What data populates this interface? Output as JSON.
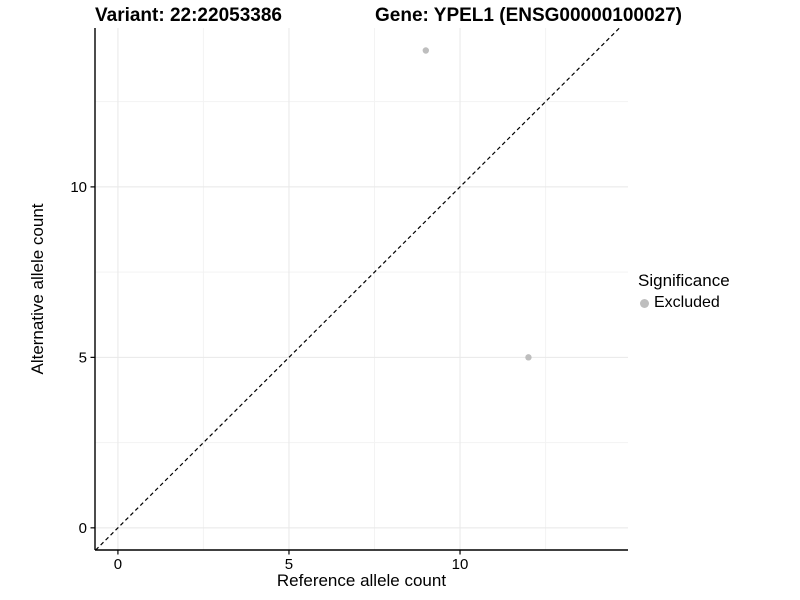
{
  "titles": {
    "variant": "Variant: 22:22053386",
    "gene": "Gene: YPEL1 (ENSG00000100027)"
  },
  "legend": {
    "title": "Significance",
    "items": [
      {
        "label": "Excluded",
        "color": "#bebebe"
      }
    ]
  },
  "colors": {
    "axis_line": "#000000",
    "tick_mark": "#000000",
    "grid_major": "#e8e8e8",
    "grid_minor": "#f3f3f3",
    "point": "#bebebe",
    "reference_line": "#000000",
    "text": "#000000"
  },
  "chart_data": {
    "type": "scatter",
    "title": "Variant: 22:22053386 | Gene: YPEL1 (ENSG00000100027)",
    "xlabel": "Reference allele count",
    "ylabel": "Alternative allele count",
    "xlim": [
      -0.67,
      14.91
    ],
    "ylim": [
      -0.65,
      14.66
    ],
    "xticks": [
      0,
      5,
      10
    ],
    "yticks": [
      0,
      5,
      10
    ],
    "x_minor_gridlines": [
      2.5,
      7.5,
      12.5
    ],
    "y_minor_gridlines": [
      2.5,
      7.5,
      12.5
    ],
    "grid": true,
    "legend_position": "right",
    "legend_title": "Significance",
    "series": [
      {
        "name": "Excluded",
        "color": "#bebebe",
        "marker_radius": 3.2,
        "points": [
          {
            "x": 9,
            "y": 14
          },
          {
            "x": 12,
            "y": 5
          }
        ]
      }
    ],
    "reference_line": {
      "kind": "y=x",
      "style": "dashed",
      "color": "#000000"
    }
  }
}
